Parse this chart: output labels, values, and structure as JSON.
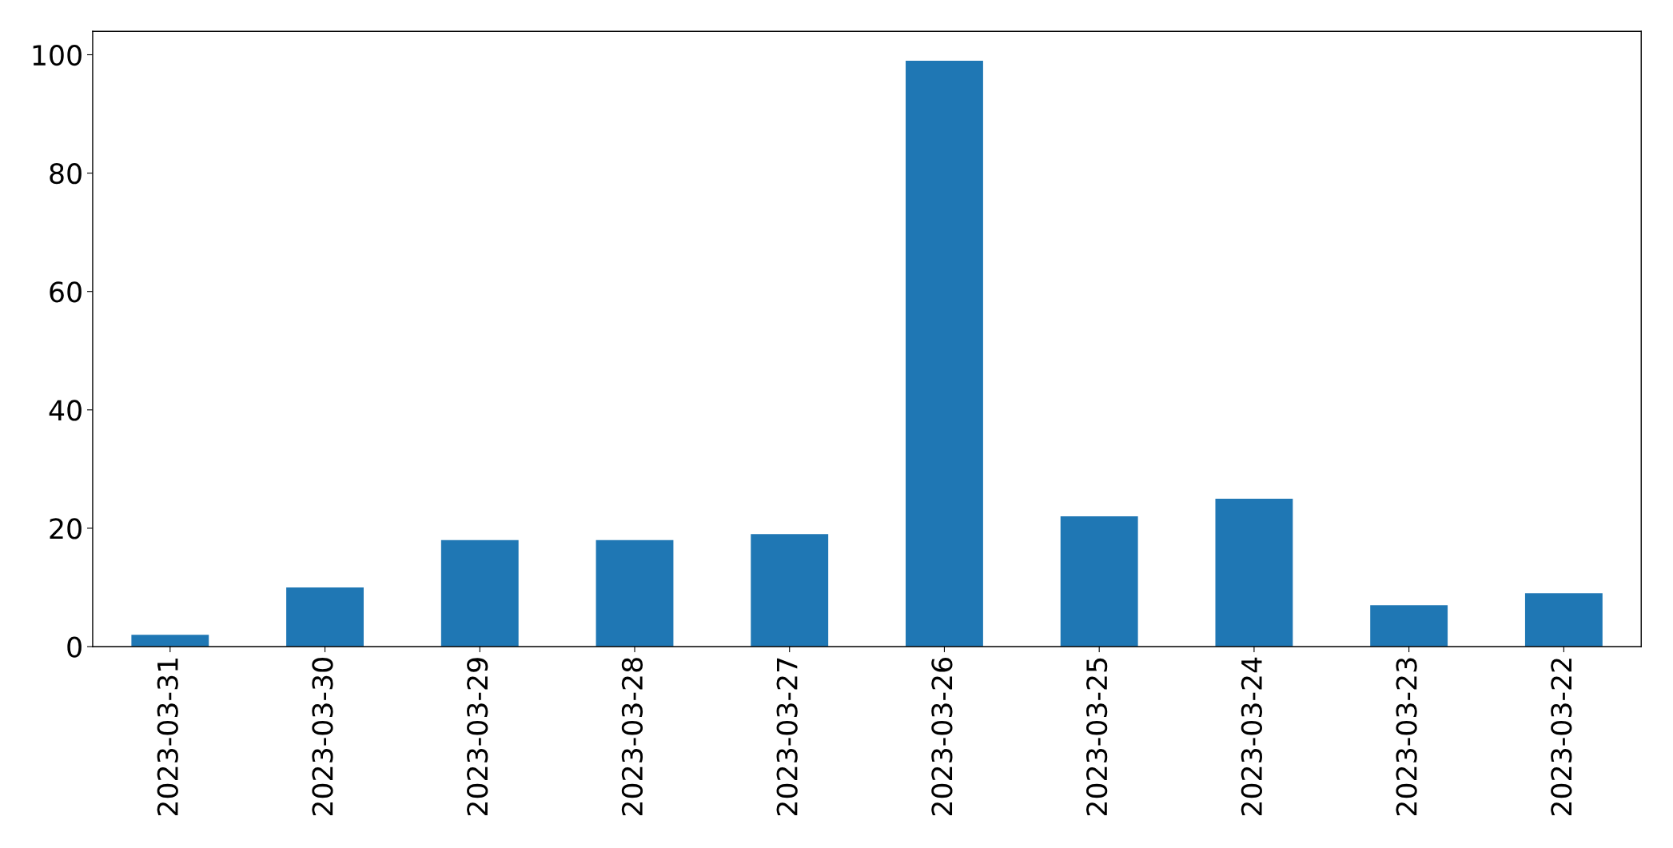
{
  "chart_data": {
    "type": "bar",
    "categories": [
      "2023-03-31",
      "2023-03-30",
      "2023-03-29",
      "2023-03-28",
      "2023-03-27",
      "2023-03-26",
      "2023-03-25",
      "2023-03-24",
      "2023-03-23",
      "2023-03-22"
    ],
    "values": [
      2,
      10,
      18,
      18,
      19,
      99,
      22,
      25,
      7,
      9
    ],
    "color": "#1f77b4",
    "ylim": [
      0,
      103.95
    ],
    "yticks": [
      0,
      20,
      40,
      60,
      80,
      100
    ]
  }
}
